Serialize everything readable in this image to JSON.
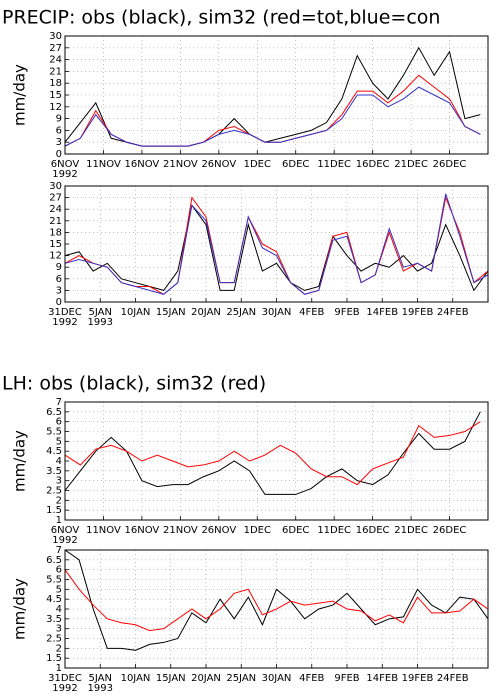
{
  "chart_data": [
    {
      "type": "line",
      "title": "PRECIP: obs (black), sim32 (red=tot,blue=con",
      "ylabel": "mm/day",
      "grid": true,
      "x": [
        0,
        2,
        4,
        6,
        8,
        10,
        12,
        14,
        16,
        18,
        20,
        22,
        24,
        26,
        28,
        30,
        32,
        34,
        36,
        38,
        40,
        42,
        44,
        46,
        48,
        50,
        52,
        54
      ],
      "xlim": [
        0,
        55
      ],
      "xticks": [
        {
          "value": 0,
          "label": "6NOV"
        },
        {
          "value": 5,
          "label": "11NOV"
        },
        {
          "value": 10,
          "label": "16NOV"
        },
        {
          "value": 15,
          "label": "21NOV"
        },
        {
          "value": 20,
          "label": "26NOV"
        },
        {
          "value": 25,
          "label": "1DEC"
        },
        {
          "value": 30,
          "label": "6DEC"
        },
        {
          "value": 35,
          "label": "11DEC"
        },
        {
          "value": 40,
          "label": "16DEC"
        },
        {
          "value": 45,
          "label": "21DEC"
        },
        {
          "value": 50,
          "label": "26DEC"
        }
      ],
      "xtick_years": [
        {
          "value": 0,
          "label": "1992"
        }
      ],
      "ylim": [
        0,
        30
      ],
      "yticks": [
        0,
        3,
        6,
        9,
        12,
        15,
        18,
        21,
        24,
        27,
        30
      ],
      "series": [
        {
          "color": "#000000",
          "values": [
            3,
            8,
            13,
            4,
            3,
            2,
            2,
            2,
            2,
            3,
            5,
            9,
            5,
            3,
            4,
            5,
            6,
            8,
            14,
            25,
            18,
            14,
            20,
            27,
            20,
            26,
            9,
            10
          ]
        },
        {
          "color": "#ff0000",
          "values": [
            2,
            4,
            11,
            5,
            3,
            2,
            2,
            2,
            2,
            3,
            6,
            7,
            5,
            3,
            3,
            4,
            5,
            6,
            10,
            16,
            16,
            13,
            16,
            20,
            17,
            14,
            7,
            5
          ]
        },
        {
          "color": "#3333cc",
          "values": [
            2,
            4,
            10,
            5,
            3,
            2,
            2,
            2,
            2,
            3,
            5,
            6,
            5,
            3,
            3,
            4,
            5,
            6,
            9,
            15,
            15,
            12,
            14,
            17,
            15,
            13,
            7,
            5
          ]
        }
      ]
    },
    {
      "type": "line",
      "grid": true,
      "x": [
        0,
        2,
        4,
        6,
        8,
        10,
        12,
        14,
        16,
        18,
        20,
        22,
        24,
        26,
        28,
        30,
        32,
        34,
        36,
        38,
        40,
        42,
        44,
        46,
        48,
        50,
        52,
        54,
        56,
        58,
        60
      ],
      "xlim": [
        0,
        60
      ],
      "xticks": [
        {
          "value": 0,
          "label": "31DEC"
        },
        {
          "value": 5,
          "label": "5JAN"
        },
        {
          "value": 10,
          "label": "10JAN"
        },
        {
          "value": 15,
          "label": "15JAN"
        },
        {
          "value": 20,
          "label": "20JAN"
        },
        {
          "value": 25,
          "label": "25JAN"
        },
        {
          "value": 30,
          "label": "30JAN"
        },
        {
          "value": 35,
          "label": "4FEB"
        },
        {
          "value": 40,
          "label": "9FEB"
        },
        {
          "value": 45,
          "label": "14FEB"
        },
        {
          "value": 50,
          "label": "19FEB"
        },
        {
          "value": 55,
          "label": "24FEB"
        }
      ],
      "xtick_years": [
        {
          "value": 0,
          "label": "1992"
        },
        {
          "value": 5,
          "label": "1993"
        }
      ],
      "ylim": [
        0,
        30
      ],
      "yticks": [
        0,
        3,
        6,
        9,
        12,
        15,
        18,
        21,
        24,
        27,
        30
      ],
      "series": [
        {
          "color": "#000000",
          "values": [
            12,
            13,
            8,
            10,
            6,
            5,
            4,
            3,
            8,
            25,
            20,
            3,
            3,
            20,
            8,
            10,
            5,
            3,
            4,
            17,
            12,
            8,
            10,
            9,
            12,
            8,
            10,
            20,
            12,
            3,
            8
          ]
        },
        {
          "color": "#ff0000",
          "values": [
            10,
            12,
            10,
            9,
            5,
            4,
            4,
            2,
            5,
            27,
            22,
            5,
            5,
            22,
            15,
            13,
            5,
            2,
            3,
            17,
            18,
            5,
            7,
            18,
            8,
            10,
            8,
            27,
            18,
            5,
            8
          ]
        },
        {
          "color": "#3333cc",
          "values": [
            10,
            11,
            10,
            9,
            5,
            4,
            3,
            2,
            5,
            25,
            21,
            5,
            5,
            22,
            14,
            12,
            5,
            2,
            3,
            16,
            17,
            5,
            7,
            19,
            9,
            10,
            8,
            28,
            17,
            5,
            7
          ]
        }
      ]
    },
    {
      "type": "line",
      "title": "LH: obs (black), sim32 (red)",
      "ylabel": "mm/day",
      "grid": true,
      "x": [
        0,
        2,
        4,
        6,
        8,
        10,
        12,
        14,
        16,
        18,
        20,
        22,
        24,
        26,
        28,
        30,
        32,
        34,
        36,
        38,
        40,
        42,
        44,
        46,
        48,
        50,
        52,
        54
      ],
      "xlim": [
        0,
        55
      ],
      "xticks": [
        {
          "value": 0,
          "label": "6NOV"
        },
        {
          "value": 5,
          "label": "11NOV"
        },
        {
          "value": 10,
          "label": "16NOV"
        },
        {
          "value": 15,
          "label": "21NOV"
        },
        {
          "value": 20,
          "label": "26NOV"
        },
        {
          "value": 25,
          "label": "1DEC"
        },
        {
          "value": 30,
          "label": "6DEC"
        },
        {
          "value": 35,
          "label": "11DEC"
        },
        {
          "value": 40,
          "label": "16DEC"
        },
        {
          "value": 45,
          "label": "21DEC"
        },
        {
          "value": 50,
          "label": "26DEC"
        }
      ],
      "xtick_years": [
        {
          "value": 0,
          "label": "1992"
        }
      ],
      "ylim": [
        1,
        7
      ],
      "yticks": [
        1,
        1.5,
        2,
        2.5,
        3,
        3.5,
        4,
        4.5,
        5,
        5.5,
        6,
        6.5,
        7
      ],
      "series": [
        {
          "color": "#000000",
          "values": [
            2.5,
            3.5,
            4.5,
            5.2,
            4.5,
            3,
            2.7,
            2.8,
            2.8,
            3.2,
            3.5,
            4,
            3.5,
            2.3,
            2.3,
            2.3,
            2.6,
            3.2,
            3.6,
            3,
            2.8,
            3.3,
            4.4,
            5.4,
            4.6,
            4.6,
            5,
            6.5
          ]
        },
        {
          "color": "#ff0000",
          "values": [
            4.3,
            3.8,
            4.6,
            4.8,
            4.5,
            4,
            4.3,
            4,
            3.7,
            3.8,
            4,
            4.5,
            4,
            4.3,
            4.8,
            4.4,
            3.6,
            3.2,
            3.2,
            2.8,
            3.6,
            3.9,
            4.2,
            5.8,
            5.2,
            5.3,
            5.5,
            6
          ]
        }
      ]
    },
    {
      "type": "line",
      "ylabel": "mm/day",
      "grid": true,
      "x": [
        0,
        2,
        4,
        6,
        8,
        10,
        12,
        14,
        16,
        18,
        20,
        22,
        24,
        26,
        28,
        30,
        32,
        34,
        36,
        38,
        40,
        42,
        44,
        46,
        48,
        50,
        52,
        54,
        56,
        58,
        60
      ],
      "xlim": [
        0,
        60
      ],
      "xticks": [
        {
          "value": 0,
          "label": "31DEC"
        },
        {
          "value": 5,
          "label": "5JAN"
        },
        {
          "value": 10,
          "label": "10JAN"
        },
        {
          "value": 15,
          "label": "15JAN"
        },
        {
          "value": 20,
          "label": "20JAN"
        },
        {
          "value": 25,
          "label": "25JAN"
        },
        {
          "value": 30,
          "label": "30JAN"
        },
        {
          "value": 35,
          "label": "4FEB"
        },
        {
          "value": 40,
          "label": "9FEB"
        },
        {
          "value": 45,
          "label": "14FEB"
        },
        {
          "value": 50,
          "label": "19FEB"
        },
        {
          "value": 55,
          "label": "24FEB"
        }
      ],
      "xtick_years": [
        {
          "value": 0,
          "label": "1992"
        },
        {
          "value": 5,
          "label": "1993"
        }
      ],
      "ylim": [
        1,
        7
      ],
      "yticks": [
        1,
        1.5,
        2,
        2.5,
        3,
        3.5,
        4,
        4.5,
        5,
        5.5,
        6,
        6.5,
        7
      ],
      "series": [
        {
          "color": "#000000",
          "values": [
            7,
            6.5,
            4,
            2,
            2,
            1.9,
            2.2,
            2.3,
            2.5,
            3.8,
            3.3,
            4.5,
            3.5,
            4.6,
            3.2,
            5,
            4.4,
            3.5,
            4,
            4.2,
            4.8,
            4,
            3.2,
            3.5,
            3.6,
            5,
            4.2,
            3.8,
            4.6,
            4.5,
            3.5
          ]
        },
        {
          "color": "#ff0000",
          "values": [
            6,
            5,
            4.2,
            3.5,
            3.3,
            3.2,
            2.9,
            3,
            3.5,
            4,
            3.5,
            4,
            4.8,
            5,
            3.7,
            4,
            4.4,
            4.2,
            4.3,
            4.4,
            4,
            3.9,
            3.4,
            3.7,
            3.3,
            4.6,
            3.8,
            3.8,
            3.9,
            4.5,
            4
          ]
        }
      ]
    }
  ]
}
